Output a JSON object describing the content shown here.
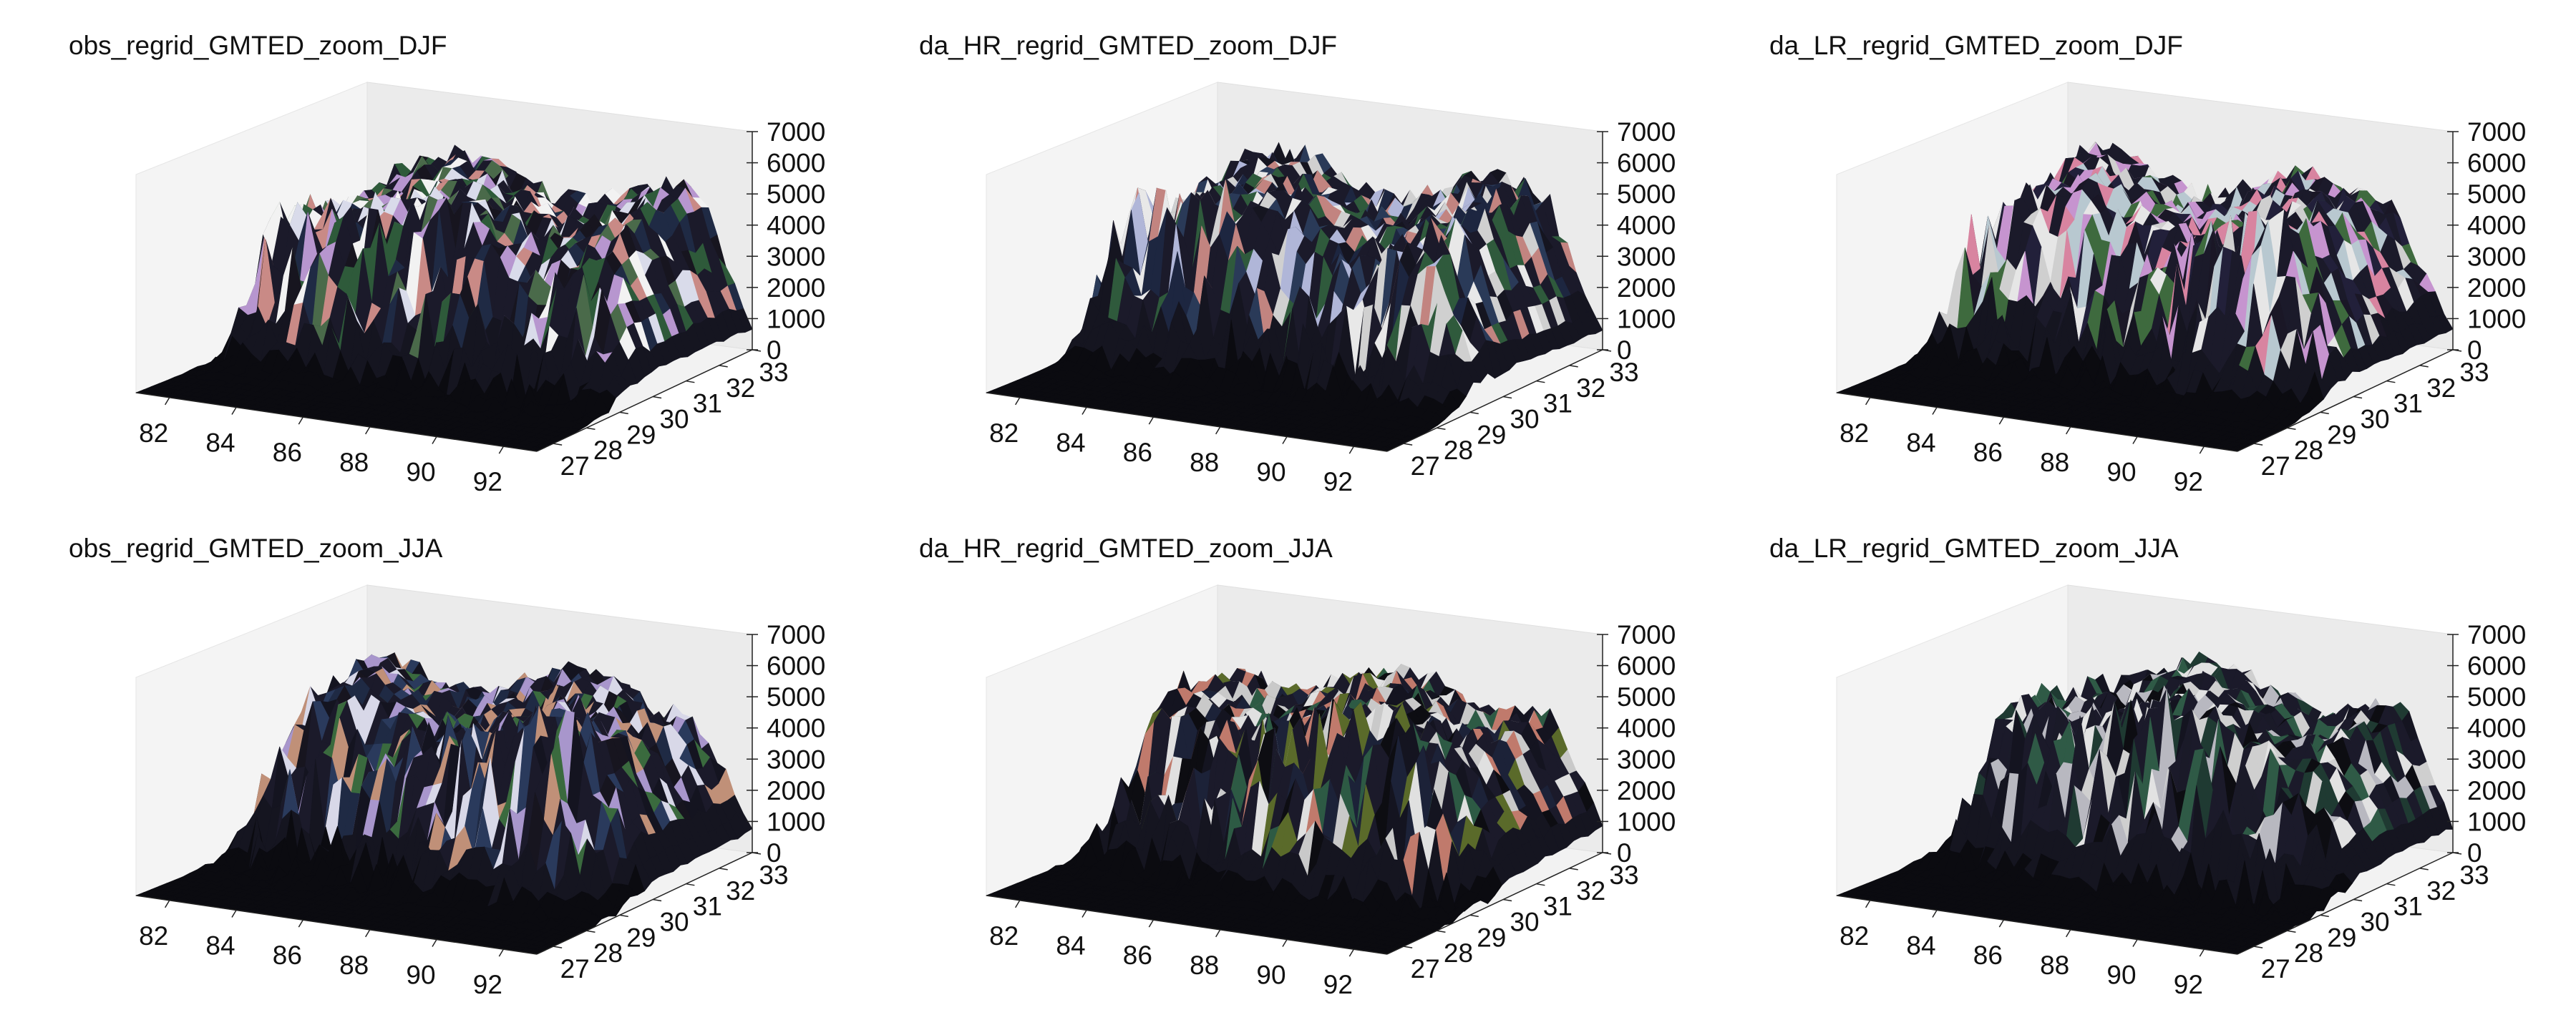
{
  "figure": {
    "chart_type_note": "3D surface plots (terrain elevation), 2 rows x 3 columns"
  },
  "chart_data": [
    {
      "type": "surface3d",
      "title": "obs_regrid_GMTED_zoom_DJF",
      "x_ticks": [
        "82",
        "84",
        "86",
        "88",
        "90",
        "92"
      ],
      "y_ticks": [
        "27",
        "28",
        "29",
        "30",
        "31",
        "32",
        "33"
      ],
      "z_ticks": [
        "0",
        "1000",
        "2000",
        "3000",
        "4000",
        "5000",
        "6000",
        "7000"
      ],
      "xlim": [
        81,
        93
      ],
      "ylim": [
        26.5,
        33
      ],
      "zlim": [
        0,
        7000
      ],
      "colormap": "cubehelix-like (black, navy, green, pink, lavender, white)",
      "palette": [
        "#17151f",
        "#1f2a44",
        "#2e5a3a",
        "#c98a86",
        "#b796cf",
        "#d9dbea",
        "#f2f2f2",
        "#4a6a4a"
      ]
    },
    {
      "type": "surface3d",
      "title": "da_HR_regrid_GMTED_zoom_DJF",
      "x_ticks": [
        "82",
        "84",
        "86",
        "88",
        "90",
        "92"
      ],
      "y_ticks": [
        "27",
        "28",
        "29",
        "30",
        "31",
        "32",
        "33"
      ],
      "z_ticks": [
        "0",
        "1000",
        "2000",
        "3000",
        "4000",
        "5000",
        "6000",
        "7000"
      ],
      "xlim": [
        81,
        93
      ],
      "ylim": [
        26.5,
        33
      ],
      "zlim": [
        0,
        7000
      ],
      "palette": [
        "#151520",
        "#1d2640",
        "#2f5a3c",
        "#c28480",
        "#e8e8e8",
        "#b0b6d8",
        "#d0d0d0",
        "#2a3a58"
      ]
    },
    {
      "type": "surface3d",
      "title": "da_LR_regrid_GMTED_zoom_DJF",
      "x_ticks": [
        "82",
        "84",
        "86",
        "88",
        "90",
        "92"
      ],
      "y_ticks": [
        "27",
        "28",
        "29",
        "30",
        "31",
        "32",
        "33"
      ],
      "z_ticks": [
        "0",
        "1000",
        "2000",
        "3000",
        "4000",
        "5000",
        "6000",
        "7000"
      ],
      "xlim": [
        81,
        93
      ],
      "ylim": [
        26.5,
        33
      ],
      "zlim": [
        0,
        7000
      ],
      "palette": [
        "#1a1726",
        "#e6e6e6",
        "#cfcfcf",
        "#c694cf",
        "#3e6a3e",
        "#b8c8d0",
        "#d884a0",
        "#22203a"
      ]
    },
    {
      "type": "surface3d",
      "title": "obs_regrid_GMTED_zoom_JJA",
      "x_ticks": [
        "82",
        "84",
        "86",
        "88",
        "90",
        "92"
      ],
      "y_ticks": [
        "27",
        "28",
        "29",
        "30",
        "31",
        "32",
        "33"
      ],
      "z_ticks": [
        "0",
        "1000",
        "2000",
        "3000",
        "4000",
        "5000",
        "6000",
        "7000"
      ],
      "xlim": [
        81,
        93
      ],
      "ylim": [
        26.5,
        33
      ],
      "zlim": [
        0,
        7000
      ],
      "palette": [
        "#141420",
        "#1f2a44",
        "#3a6a3e",
        "#c09078",
        "#a896cc",
        "#2a3a5c",
        "#d8d8e8",
        "#17151f"
      ]
    },
    {
      "type": "surface3d",
      "title": "da_HR_regrid_GMTED_zoom_JJA",
      "x_ticks": [
        "82",
        "84",
        "86",
        "88",
        "90",
        "92"
      ],
      "y_ticks": [
        "27",
        "28",
        "29",
        "30",
        "31",
        "32",
        "33"
      ],
      "z_ticks": [
        "0",
        "1000",
        "2000",
        "3000",
        "4000",
        "5000",
        "6000",
        "7000"
      ],
      "xlim": [
        81,
        93
      ],
      "ylim": [
        26.5,
        33
      ],
      "zlim": [
        0,
        7000
      ],
      "palette": [
        "#0d0d12",
        "#141420",
        "#e0e0e0",
        "#c9c9c9",
        "#2d5a44",
        "#c07a6c",
        "#5a6a2a",
        "#1c2238"
      ]
    },
    {
      "type": "surface3d",
      "title": "da_LR_regrid_GMTED_zoom_JJA",
      "x_ticks": [
        "82",
        "84",
        "86",
        "88",
        "90",
        "92"
      ],
      "y_ticks": [
        "27",
        "28",
        "29",
        "30",
        "31",
        "32",
        "33"
      ],
      "z_ticks": [
        "0",
        "1000",
        "2000",
        "3000",
        "4000",
        "5000",
        "6000",
        "7000"
      ],
      "xlim": [
        81,
        93
      ],
      "ylim": [
        26.5,
        33
      ],
      "zlim": [
        0,
        7000
      ],
      "palette": [
        "#0d0d12",
        "#1a1a28",
        "#e2e2e2",
        "#cfcfcf",
        "#2f5a46",
        "#1f3a32",
        "#b8b8c0",
        "#141420"
      ]
    }
  ]
}
